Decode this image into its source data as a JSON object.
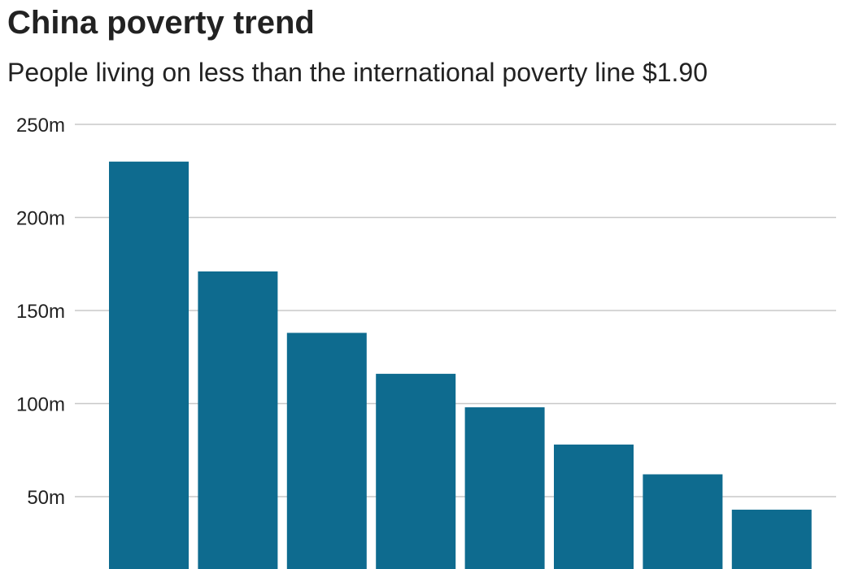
{
  "title": "China poverty trend",
  "subtitle": "People living on less than the international poverty line $1.90",
  "chart_data": {
    "type": "bar",
    "title": "China poverty trend",
    "subtitle": "People living on less than the international poverty line $1.90",
    "xlabel": "",
    "ylabel": "",
    "ylim": [
      0,
      250
    ],
    "yticks": [
      {
        "value": 50,
        "label": "50m"
      },
      {
        "value": 100,
        "label": "100m"
      },
      {
        "value": 150,
        "label": "150m"
      },
      {
        "value": 200,
        "label": "200m"
      },
      {
        "value": 250,
        "label": "250m"
      }
    ],
    "grid": true,
    "bar_color": "#0e6b8f",
    "values": [
      230,
      171,
      138,
      116,
      98,
      78,
      62,
      43
    ]
  }
}
